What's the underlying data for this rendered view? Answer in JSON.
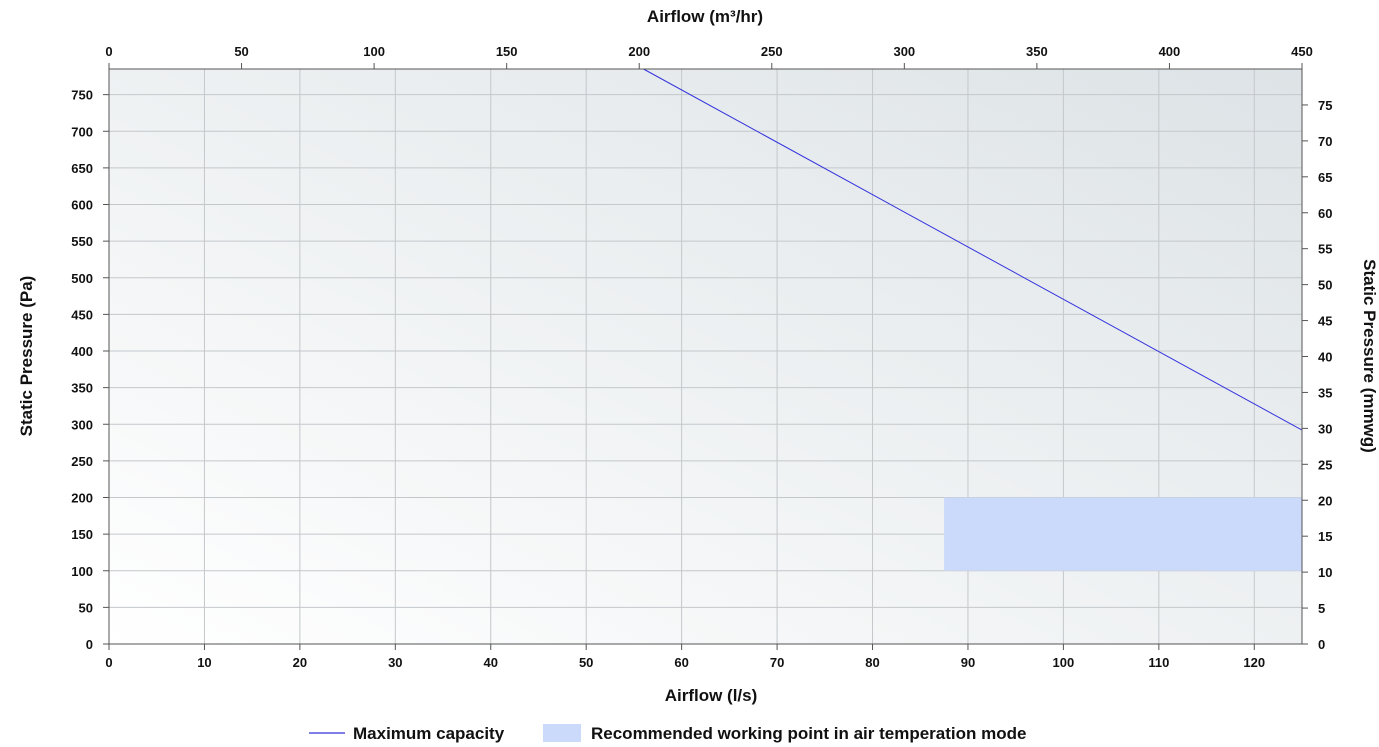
{
  "chart_data": {
    "type": "line",
    "x_bottom": {
      "label": "Airflow (l/s)",
      "range": [
        0,
        125
      ],
      "ticks": [
        0,
        10,
        20,
        30,
        40,
        50,
        60,
        70,
        80,
        90,
        100,
        110,
        120
      ]
    },
    "x_top": {
      "label": "Airflow (m³/hr)",
      "range": [
        0,
        450
      ],
      "ticks": [
        0,
        50,
        100,
        150,
        200,
        250,
        300,
        350,
        400,
        450
      ]
    },
    "y_left": {
      "label": "Static Pressure (Pa)",
      "range": [
        0,
        785
      ],
      "ticks": [
        0,
        50,
        100,
        150,
        200,
        250,
        300,
        350,
        400,
        450,
        500,
        550,
        600,
        650,
        700,
        750
      ]
    },
    "y_right": {
      "label": "Static Pressure (mmwg)",
      "range": [
        0,
        80
      ],
      "ticks": [
        0,
        5,
        10,
        15,
        20,
        25,
        30,
        35,
        40,
        45,
        50,
        55,
        60,
        65,
        70,
        75
      ]
    },
    "grid": true,
    "series": [
      {
        "name": "Maximum capacity",
        "type": "line",
        "color": "#3333dd",
        "x": [
          56,
          125
        ],
        "y": [
          785,
          292
        ]
      }
    ],
    "regions": [
      {
        "name": "Recommended working point in air temperation mode",
        "color": "#cbd9fb",
        "x": [
          87.5,
          125
        ],
        "y": [
          100,
          200
        ]
      }
    ],
    "legend_position": "bottom-center"
  }
}
